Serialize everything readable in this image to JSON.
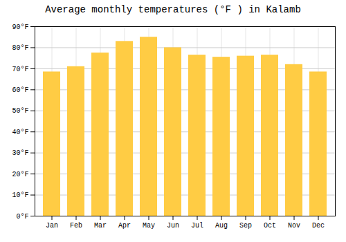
{
  "chart_data": {
    "type": "bar",
    "title": "Average monthly temperatures (°F ) in Kalamb",
    "categories": [
      "Jan",
      "Feb",
      "Mar",
      "Apr",
      "May",
      "Jun",
      "Jul",
      "Aug",
      "Sep",
      "Oct",
      "Nov",
      "Dec"
    ],
    "values": [
      68.5,
      71.0,
      77.5,
      83.0,
      85.0,
      80.0,
      76.5,
      75.5,
      76.0,
      76.5,
      72.0,
      68.5
    ],
    "color": "#FFCC44",
    "ylim": [
      0,
      90
    ],
    "yticks": [
      {
        "value": 0,
        "label": "0°F"
      },
      {
        "value": 10,
        "label": "10°F"
      },
      {
        "value": 20,
        "label": "20°F"
      },
      {
        "value": 30,
        "label": "30°F"
      },
      {
        "value": 40,
        "label": "40°F"
      },
      {
        "value": 50,
        "label": "50°F"
      },
      {
        "value": 60,
        "label": "60°F"
      },
      {
        "value": 70,
        "label": "70°F"
      },
      {
        "value": 80,
        "label": "80°F"
      },
      {
        "value": 90,
        "label": "90°F"
      }
    ],
    "grid": true
  }
}
